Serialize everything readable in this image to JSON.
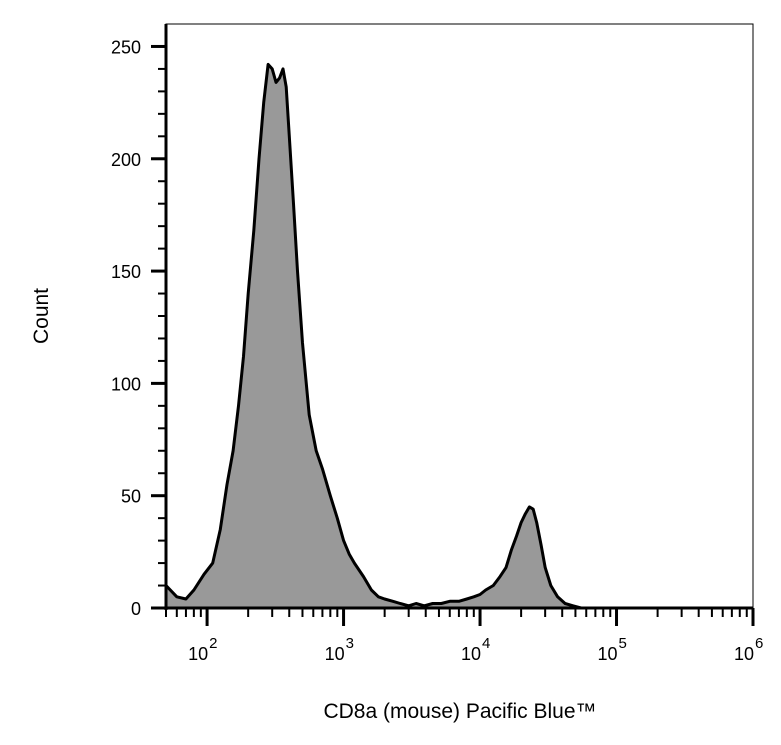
{
  "chart_data": {
    "type": "area",
    "title": "",
    "xlabel": "CD8a (mouse) Pacific Blue™",
    "ylabel": "Count",
    "x_scale": "log",
    "xlim": [
      50,
      1000000
    ],
    "ylim": [
      0,
      260
    ],
    "x_ticks": [
      {
        "value": 100,
        "base": "10",
        "exp": "2"
      },
      {
        "value": 1000,
        "base": "10",
        "exp": "3"
      },
      {
        "value": 10000,
        "base": "10",
        "exp": "4"
      },
      {
        "value": 100000,
        "base": "10",
        "exp": "5"
      },
      {
        "value": 1000000,
        "base": "10",
        "exp": "6"
      }
    ],
    "y_ticks": [
      {
        "value": 0,
        "label": "0"
      },
      {
        "value": 50,
        "label": "50"
      },
      {
        "value": 100,
        "label": "100"
      },
      {
        "value": 150,
        "label": "150"
      },
      {
        "value": 200,
        "label": "200"
      },
      {
        "value": 250,
        "label": "250"
      }
    ],
    "grid": false,
    "fill_color": "#999999",
    "line_color": "#000000",
    "series": [
      {
        "x": [
          50,
          60,
          70,
          80,
          95,
          110,
          125,
          140,
          155,
          170,
          185,
          200,
          220,
          240,
          260,
          280,
          300,
          320,
          340,
          360,
          380,
          400,
          430,
          460,
          500,
          560,
          630,
          700,
          800,
          900,
          1000,
          1100,
          1200,
          1400,
          1600,
          1800,
          2000,
          2300,
          2600,
          3000,
          3400,
          3900,
          4500,
          5200,
          6000,
          7000,
          8000,
          9000,
          10000,
          11000,
          12500,
          14000,
          15500,
          17000,
          18500,
          20000,
          21500,
          23000,
          24500,
          26000,
          28000,
          30000,
          33000,
          37000,
          42000,
          48000,
          55000,
          65000,
          80000,
          100000,
          200000,
          500000,
          1000000
        ],
        "y": [
          10,
          5,
          4,
          8,
          15,
          20,
          35,
          55,
          70,
          90,
          112,
          140,
          168,
          200,
          225,
          242,
          240,
          234,
          236,
          240,
          232,
          210,
          180,
          150,
          118,
          86,
          70,
          62,
          50,
          40,
          30,
          24,
          20,
          14,
          8,
          5,
          4,
          3,
          2,
          1,
          2,
          1,
          2,
          2,
          3,
          3,
          4,
          5,
          6,
          8,
          10,
          14,
          18,
          26,
          32,
          38,
          42,
          45,
          44,
          38,
          28,
          18,
          10,
          5,
          2,
          1,
          0,
          0,
          0,
          0,
          0,
          0,
          0
        ]
      }
    ]
  }
}
